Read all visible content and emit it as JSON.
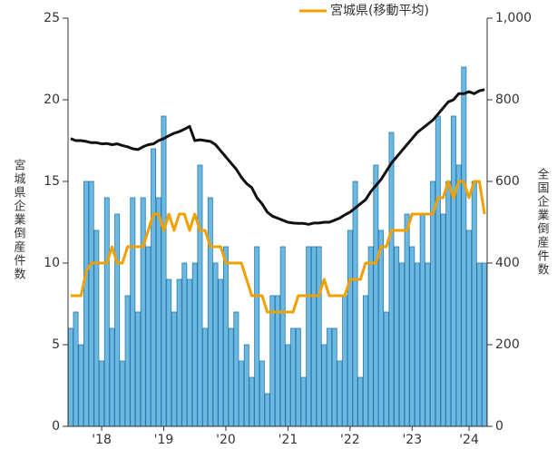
{
  "chart_data": {
    "type": "bar",
    "categories": [
      null,
      null,
      null,
      null,
      null,
      null,
      "'18",
      null,
      null,
      null,
      null,
      null,
      null,
      null,
      null,
      null,
      null,
      null,
      "'19",
      null,
      null,
      null,
      null,
      null,
      null,
      null,
      null,
      null,
      null,
      null,
      "'20",
      null,
      null,
      null,
      null,
      null,
      null,
      null,
      null,
      null,
      null,
      null,
      "'21",
      null,
      null,
      null,
      null,
      null,
      null,
      null,
      null,
      null,
      null,
      null,
      "'22",
      null,
      null,
      null,
      null,
      null,
      null,
      null,
      null,
      null,
      null,
      null,
      "'23",
      null,
      null,
      null,
      null,
      null,
      null,
      null,
      null,
      null,
      null,
      "'24",
      null,
      null,
      null
    ],
    "series": [
      {
        "type": "bar",
        "color": "#6cb8e0",
        "values": [
          6,
          7,
          5,
          15,
          15,
          12,
          4,
          14,
          6,
          13,
          4,
          8,
          14,
          7,
          14,
          11,
          17,
          14,
          19,
          9,
          7,
          9,
          10,
          9,
          10,
          16,
          6,
          14,
          10,
          9,
          11,
          6,
          7,
          4,
          5,
          3,
          11,
          4,
          2,
          8,
          8,
          11,
          5,
          6,
          6,
          3,
          11,
          11,
          11,
          5,
          6,
          6,
          4,
          8,
          12,
          15,
          3,
          8,
          11,
          16,
          12,
          7,
          18,
          11,
          10,
          13,
          11,
          10,
          13,
          10,
          15,
          19,
          13,
          15,
          19,
          16,
          22,
          12,
          15,
          10,
          10
        ]
      },
      {
        "type": "line",
        "name": "宮城県(移動平均)",
        "color": "#f0a000",
        "values": [
          8,
          8,
          8,
          9.5,
          10,
          10,
          10,
          10,
          11,
          10,
          10,
          11,
          11,
          11,
          11,
          12,
          13,
          13,
          12,
          13,
          12,
          13,
          13,
          12,
          13,
          12,
          12,
          11,
          11,
          11,
          10,
          10,
          10,
          10,
          9,
          8,
          8,
          8,
          7,
          7,
          7,
          7,
          7,
          7,
          8,
          8,
          8,
          8,
          8,
          9,
          8,
          8,
          8,
          8,
          9,
          9,
          9,
          10,
          10,
          10,
          11,
          11,
          12,
          12,
          12,
          12,
          13,
          13,
          13,
          13,
          13,
          14,
          14,
          15,
          14,
          15,
          15,
          14,
          15,
          15,
          13
        ]
      },
      {
        "type": "line",
        "axis": "y2",
        "color": "#111111",
        "values": [
          705,
          700,
          700,
          698,
          695,
          695,
          692,
          693,
          690,
          692,
          688,
          685,
          680,
          678,
          685,
          690,
          692,
          700,
          705,
          712,
          718,
          722,
          728,
          735,
          700,
          702,
          700,
          698,
          690,
          675,
          660,
          645,
          630,
          610,
          595,
          585,
          560,
          545,
          525,
          515,
          510,
          505,
          500,
          498,
          497,
          497,
          495,
          498,
          498,
          500,
          500,
          505,
          510,
          518,
          525,
          535,
          545,
          555,
          575,
          590,
          605,
          625,
          645,
          660,
          675,
          690,
          705,
          720,
          730,
          740,
          750,
          765,
          780,
          795,
          800,
          815,
          815,
          820,
          815,
          822,
          825
        ]
      }
    ],
    "ylabel": "宮城県企業倒産件数",
    "y2label": "全国企業倒産件数",
    "ylim": [
      0,
      25
    ],
    "yticks": [
      0,
      5,
      10,
      15,
      20,
      25
    ],
    "y2lim": [
      0,
      1000
    ],
    "y2ticks": [
      0,
      200,
      400,
      600,
      800,
      {
        "value": 1000,
        "label": "1,000"
      }
    ],
    "legend": "top"
  }
}
